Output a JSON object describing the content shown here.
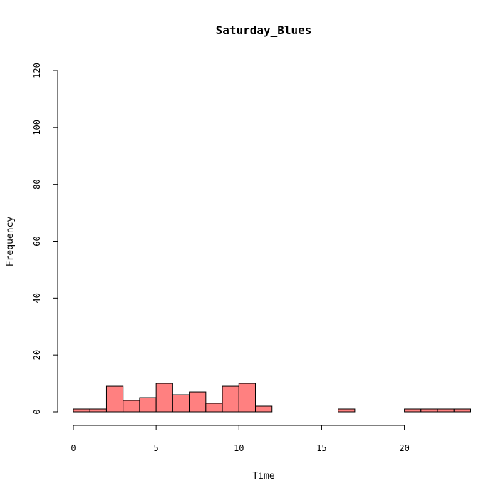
{
  "chart_data": {
    "type": "bar",
    "title": "Saturday_Blues",
    "xlabel": "Time",
    "ylabel": "Frequency",
    "xlim": [
      0,
      24
    ],
    "ylim": [
      0,
      120
    ],
    "x_ticks": [
      0,
      5,
      10,
      15,
      20
    ],
    "y_ticks": [
      0,
      20,
      40,
      60,
      80,
      100,
      120
    ],
    "bin_width": 1,
    "bins": [
      {
        "start": 0,
        "end": 1,
        "count": 1
      },
      {
        "start": 1,
        "end": 2,
        "count": 1
      },
      {
        "start": 2,
        "end": 3,
        "count": 9
      },
      {
        "start": 3,
        "end": 4,
        "count": 4
      },
      {
        "start": 4,
        "end": 5,
        "count": 5
      },
      {
        "start": 5,
        "end": 6,
        "count": 10
      },
      {
        "start": 6,
        "end": 7,
        "count": 6
      },
      {
        "start": 7,
        "end": 8,
        "count": 7
      },
      {
        "start": 8,
        "end": 9,
        "count": 3
      },
      {
        "start": 9,
        "end": 10,
        "count": 9
      },
      {
        "start": 10,
        "end": 11,
        "count": 10
      },
      {
        "start": 11,
        "end": 12,
        "count": 2
      },
      {
        "start": 12,
        "end": 13,
        "count": 0
      },
      {
        "start": 13,
        "end": 14,
        "count": 0
      },
      {
        "start": 14,
        "end": 15,
        "count": 0
      },
      {
        "start": 15,
        "end": 16,
        "count": 0
      },
      {
        "start": 16,
        "end": 17,
        "count": 1
      },
      {
        "start": 17,
        "end": 18,
        "count": 0
      },
      {
        "start": 18,
        "end": 19,
        "count": 0
      },
      {
        "start": 19,
        "end": 20,
        "count": 0
      },
      {
        "start": 20,
        "end": 21,
        "count": 1
      },
      {
        "start": 21,
        "end": 22,
        "count": 1
      },
      {
        "start": 22,
        "end": 23,
        "count": 1
      },
      {
        "start": 23,
        "end": 24,
        "count": 1
      }
    ],
    "bar_color": "#ff8080",
    "grid": false,
    "legend": "none"
  }
}
